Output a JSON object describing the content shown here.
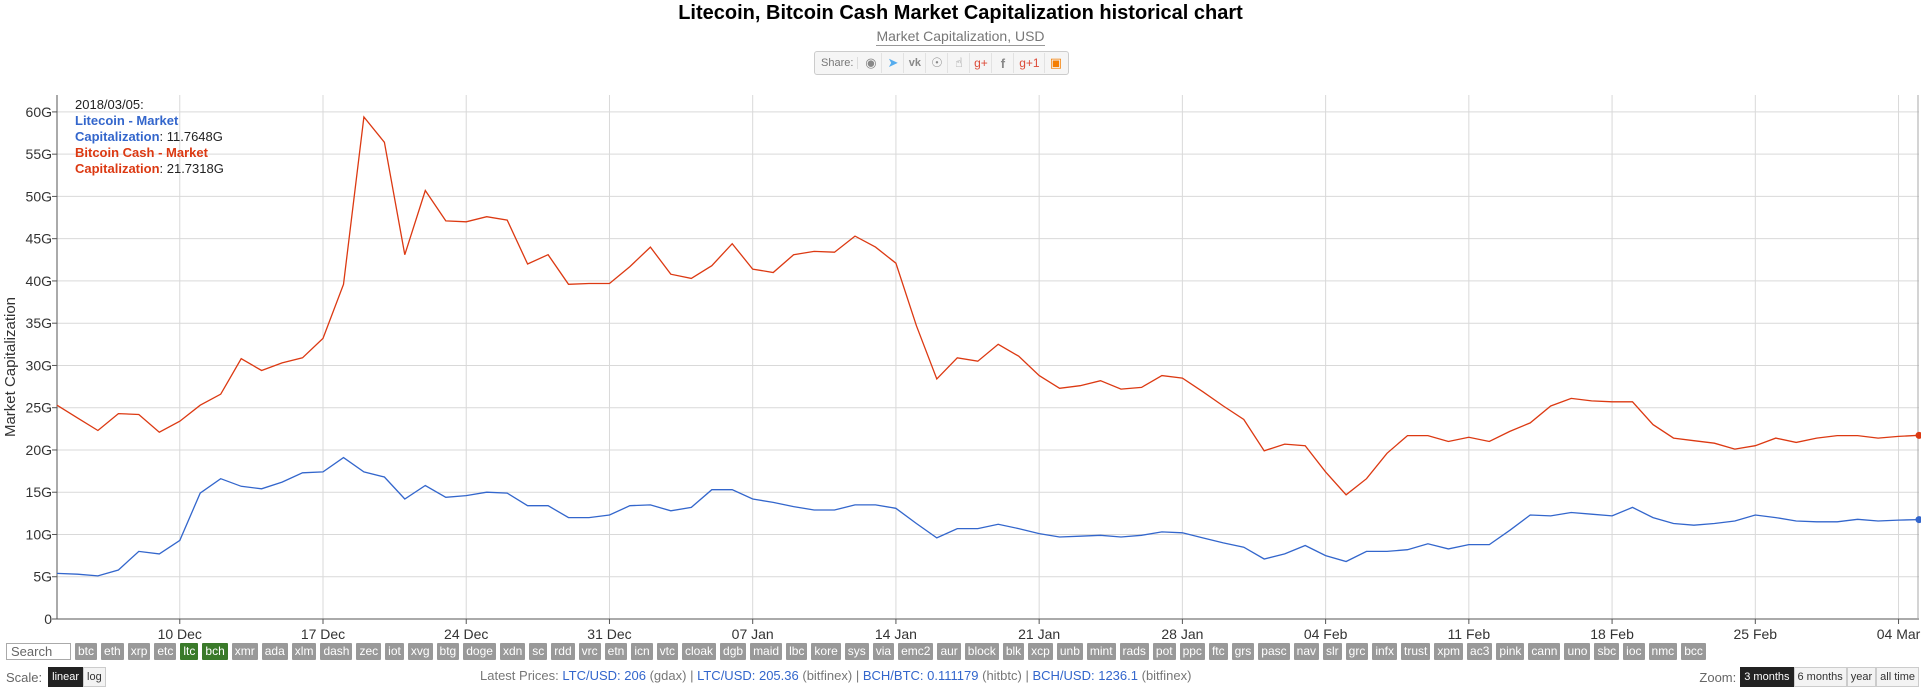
{
  "title": "Litecoin, Bitcoin Cash Market Capitalization historical chart",
  "subtitle": "Market Capitalization, USD",
  "share": {
    "label": "Share:",
    "icons": [
      "reddit-icon",
      "twitter-icon",
      "vk-icon",
      "weibo-icon",
      "like-icon",
      "google-plus-icon",
      "facebook-icon",
      "google-plus-one-icon",
      "blogger-icon"
    ]
  },
  "tooltip": {
    "date": "2018/03/05:",
    "ltc_label_1": "Litecoin - Market",
    "ltc_label_2": "Capitalization",
    "ltc_value": ": 11.7648G",
    "bch_label_1": "Bitcoin Cash - Market",
    "bch_label_2": "Capitalization",
    "bch_value": ": 21.7318G"
  },
  "tickers": {
    "search_placeholder": "Search",
    "items": [
      "btc",
      "eth",
      "xrp",
      "etc",
      "ltc",
      "bch",
      "xmr",
      "ada",
      "xlm",
      "dash",
      "zec",
      "iot",
      "xvg",
      "btg",
      "doge",
      "xdn",
      "sc",
      "rdd",
      "vrc",
      "etn",
      "icn",
      "vtc",
      "cloak",
      "dgb",
      "maid",
      "lbc",
      "kore",
      "sys",
      "via",
      "emc2",
      "aur",
      "block",
      "blk",
      "xcp",
      "unb",
      "mint",
      "rads",
      "pot",
      "ppc",
      "ftc",
      "grs",
      "pasc",
      "nav",
      "slr",
      "grc",
      "infx",
      "trust",
      "xpm",
      "ac3",
      "pink",
      "cann",
      "uno",
      "sbc",
      "ioc",
      "nmc",
      "bcc"
    ],
    "active": [
      "ltc",
      "bch"
    ]
  },
  "scale": {
    "label": "Scale:",
    "linear": "linear",
    "log": "log",
    "selected": "linear"
  },
  "prices": {
    "label": "Latest Prices:",
    "p1_pair": "LTC/USD: 206",
    "p1_src": "(gdax)",
    "sep": "|",
    "p2_pair": "LTC/USD: 205.36",
    "p2_src": "(bitfinex)",
    "p3_pair": "BCH/BTC: 0.111179",
    "p3_src": "(hitbtc)",
    "p4_pair": "BCH/USD: 1236.1",
    "p4_src": "(bitfinex)"
  },
  "zoom": {
    "label": "Zoom:",
    "options": [
      "3 months",
      "6 months",
      "year",
      "all time"
    ],
    "selected": "3 months"
  },
  "colors": {
    "ltc": "#3366cc",
    "bch": "#dc3912",
    "grid": "#d9d9d9"
  },
  "chart_data": {
    "type": "line",
    "ylabel": "Market Capitalization",
    "ylim": [
      0,
      62
    ],
    "yticks": [
      0,
      5,
      10,
      15,
      20,
      25,
      30,
      35,
      40,
      45,
      50,
      55,
      60
    ],
    "ytick_labels": [
      "0",
      "5G",
      "10G",
      "15G",
      "20G",
      "25G",
      "30G",
      "35G",
      "40G",
      "45G",
      "50G",
      "55G",
      "60G"
    ],
    "x_range": [
      "2017-12-04",
      "2018-03-05"
    ],
    "xticks": [
      "2017-12-10",
      "2017-12-17",
      "2017-12-24",
      "2017-12-31",
      "2018-01-07",
      "2018-01-14",
      "2018-01-21",
      "2018-01-28",
      "2018-02-04",
      "2018-02-11",
      "2018-02-18",
      "2018-02-25",
      "2018-03-04"
    ],
    "xtick_labels": [
      "10 Dec",
      "17 Dec",
      "24 Dec",
      "31 Dec",
      "07 Jan",
      "14 Jan",
      "21 Jan",
      "28 Jan",
      "04 Feb",
      "11 Feb",
      "18 Feb",
      "25 Feb",
      "04 Mar"
    ],
    "grid": true,
    "legend": "top-left tooltip",
    "series": [
      {
        "name": "Litecoin - Market Capitalization",
        "color": "#3366cc",
        "unit": "G USD",
        "x": [
          "2017-12-04",
          "2017-12-05",
          "2017-12-06",
          "2017-12-07",
          "2017-12-08",
          "2017-12-09",
          "2017-12-10",
          "2017-12-11",
          "2017-12-12",
          "2017-12-13",
          "2017-12-14",
          "2017-12-15",
          "2017-12-16",
          "2017-12-17",
          "2017-12-18",
          "2017-12-19",
          "2017-12-20",
          "2017-12-21",
          "2017-12-22",
          "2017-12-23",
          "2017-12-24",
          "2017-12-25",
          "2017-12-26",
          "2017-12-27",
          "2017-12-28",
          "2017-12-29",
          "2017-12-30",
          "2017-12-31",
          "2018-01-01",
          "2018-01-02",
          "2018-01-03",
          "2018-01-04",
          "2018-01-05",
          "2018-01-06",
          "2018-01-07",
          "2018-01-08",
          "2018-01-09",
          "2018-01-10",
          "2018-01-11",
          "2018-01-12",
          "2018-01-13",
          "2018-01-14",
          "2018-01-15",
          "2018-01-16",
          "2018-01-17",
          "2018-01-18",
          "2018-01-19",
          "2018-01-20",
          "2018-01-21",
          "2018-01-22",
          "2018-01-23",
          "2018-01-24",
          "2018-01-25",
          "2018-01-26",
          "2018-01-27",
          "2018-01-28",
          "2018-01-29",
          "2018-01-30",
          "2018-01-31",
          "2018-02-01",
          "2018-02-02",
          "2018-02-03",
          "2018-02-04",
          "2018-02-05",
          "2018-02-06",
          "2018-02-07",
          "2018-02-08",
          "2018-02-09",
          "2018-02-10",
          "2018-02-11",
          "2018-02-12",
          "2018-02-13",
          "2018-02-14",
          "2018-02-15",
          "2018-02-16",
          "2018-02-17",
          "2018-02-18",
          "2018-02-19",
          "2018-02-20",
          "2018-02-21",
          "2018-02-22",
          "2018-02-23",
          "2018-02-24",
          "2018-02-25",
          "2018-02-26",
          "2018-02-27",
          "2018-02-28",
          "2018-03-01",
          "2018-03-02",
          "2018-03-03",
          "2018-03-04",
          "2018-03-05"
        ],
        "values": [
          5.4,
          5.3,
          5.1,
          5.8,
          8.0,
          7.7,
          9.3,
          14.9,
          16.6,
          15.7,
          15.4,
          16.2,
          17.3,
          17.4,
          19.1,
          17.4,
          16.8,
          14.2,
          15.8,
          14.4,
          14.6,
          15.0,
          14.9,
          13.4,
          13.4,
          12.0,
          12.0,
          12.3,
          13.4,
          13.5,
          12.8,
          13.2,
          15.3,
          15.3,
          14.2,
          13.8,
          13.3,
          12.9,
          12.9,
          13.5,
          13.5,
          13.1,
          11.3,
          9.6,
          10.7,
          10.7,
          11.2,
          10.7,
          10.1,
          9.7,
          9.8,
          9.9,
          9.7,
          9.9,
          10.3,
          10.2,
          9.6,
          9.0,
          8.5,
          7.1,
          7.7,
          8.7,
          7.5,
          6.8,
          8.0,
          8.0,
          8.2,
          8.9,
          8.3,
          8.8,
          8.8,
          10.5,
          12.3,
          12.2,
          12.6,
          12.4,
          12.2,
          13.2,
          12.0,
          11.3,
          11.1,
          11.3,
          11.6,
          12.3,
          12.0,
          11.6,
          11.5,
          11.5,
          11.8,
          11.6,
          11.7,
          11.76
        ]
      },
      {
        "name": "Bitcoin Cash - Market Capitalization",
        "color": "#dc3912",
        "unit": "G USD",
        "x": [
          "2017-12-04",
          "2017-12-05",
          "2017-12-06",
          "2017-12-07",
          "2017-12-08",
          "2017-12-09",
          "2017-12-10",
          "2017-12-11",
          "2017-12-12",
          "2017-12-13",
          "2017-12-14",
          "2017-12-15",
          "2017-12-16",
          "2017-12-17",
          "2017-12-18",
          "2017-12-19",
          "2017-12-20",
          "2017-12-21",
          "2017-12-22",
          "2017-12-23",
          "2017-12-24",
          "2017-12-25",
          "2017-12-26",
          "2017-12-27",
          "2017-12-28",
          "2017-12-29",
          "2017-12-30",
          "2017-12-31",
          "2018-01-01",
          "2018-01-02",
          "2018-01-03",
          "2018-01-04",
          "2018-01-05",
          "2018-01-06",
          "2018-01-07",
          "2018-01-08",
          "2018-01-09",
          "2018-01-10",
          "2018-01-11",
          "2018-01-12",
          "2018-01-13",
          "2018-01-14",
          "2018-01-15",
          "2018-01-16",
          "2018-01-17",
          "2018-01-18",
          "2018-01-19",
          "2018-01-20",
          "2018-01-21",
          "2018-01-22",
          "2018-01-23",
          "2018-01-24",
          "2018-01-25",
          "2018-01-26",
          "2018-01-27",
          "2018-01-28",
          "2018-01-29",
          "2018-01-30",
          "2018-01-31",
          "2018-02-01",
          "2018-02-02",
          "2018-02-03",
          "2018-02-04",
          "2018-02-05",
          "2018-02-06",
          "2018-02-07",
          "2018-02-08",
          "2018-02-09",
          "2018-02-10",
          "2018-02-11",
          "2018-02-12",
          "2018-02-13",
          "2018-02-14",
          "2018-02-15",
          "2018-02-16",
          "2018-02-17",
          "2018-02-18",
          "2018-02-19",
          "2018-02-20",
          "2018-02-21",
          "2018-02-22",
          "2018-02-23",
          "2018-02-24",
          "2018-02-25",
          "2018-02-26",
          "2018-02-27",
          "2018-02-28",
          "2018-03-01",
          "2018-03-02",
          "2018-03-03",
          "2018-03-04",
          "2018-03-05"
        ],
        "values": [
          25.3,
          23.8,
          22.3,
          24.3,
          24.2,
          22.1,
          23.4,
          25.3,
          26.6,
          30.8,
          29.4,
          30.3,
          30.9,
          33.2,
          39.6,
          59.4,
          56.4,
          43.1,
          50.7,
          47.1,
          47.0,
          47.6,
          47.2,
          42.0,
          43.1,
          39.6,
          39.7,
          39.7,
          41.7,
          44.0,
          40.8,
          40.3,
          41.8,
          44.4,
          41.4,
          41.0,
          43.1,
          43.5,
          43.4,
          45.3,
          44.0,
          42.1,
          34.7,
          28.4,
          30.9,
          30.5,
          32.5,
          31.1,
          28.8,
          27.3,
          27.6,
          28.2,
          27.2,
          27.4,
          28.8,
          28.5,
          26.9,
          25.2,
          23.6,
          19.9,
          20.7,
          20.5,
          17.4,
          14.7,
          16.6,
          19.6,
          21.7,
          21.7,
          21.0,
          21.5,
          21.0,
          22.2,
          23.2,
          25.2,
          26.1,
          25.8,
          25.7,
          25.7,
          23.0,
          21.4,
          21.1,
          20.8,
          20.1,
          20.5,
          21.4,
          20.9,
          21.4,
          21.7,
          21.7,
          21.4,
          21.6,
          21.73
        ]
      }
    ]
  }
}
